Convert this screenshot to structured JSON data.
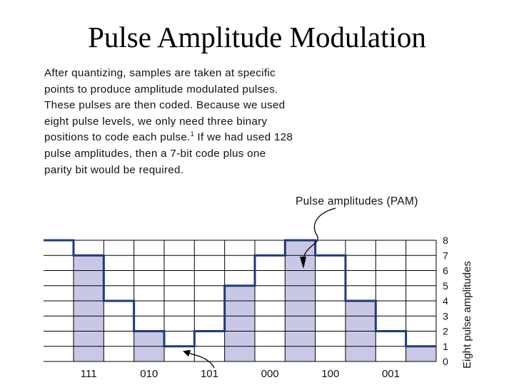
{
  "title": "Pulse Amplitude Modulation",
  "description": {
    "before_sup": "After quantizing, samples are taken at specific points to produce amplitude modulated pulses. These pulses are then coded. Because we used eight pulse levels, we only need three binary positions to code each pulse.",
    "sup": "1",
    "after_sup": " If we had used 128 pulse amplitudes, then a 7-bit code plus one parity bit would be required."
  },
  "annotation_pam": "Pulse amplitudes (PAM)",
  "axis_label": "Eight pulse amplitudes",
  "colors": {
    "fill": "#c8c8e6",
    "signal": "#1f3a7a",
    "grid": "#000000"
  },
  "level_labels": [
    "0",
    "1",
    "2",
    "3",
    "4",
    "5",
    "6",
    "7",
    "8"
  ],
  "codes": [
    "111",
    "010",
    "101",
    "000",
    "100",
    "001"
  ],
  "pulses": [
    7,
    4,
    2,
    1,
    2,
    5,
    7,
    8,
    7,
    4,
    2,
    1
  ],
  "shaded_pulses": [
    true,
    false,
    true,
    false,
    false,
    true,
    false,
    true,
    false,
    true,
    false,
    true
  ],
  "lead_level": 8,
  "tail_level": 1
}
